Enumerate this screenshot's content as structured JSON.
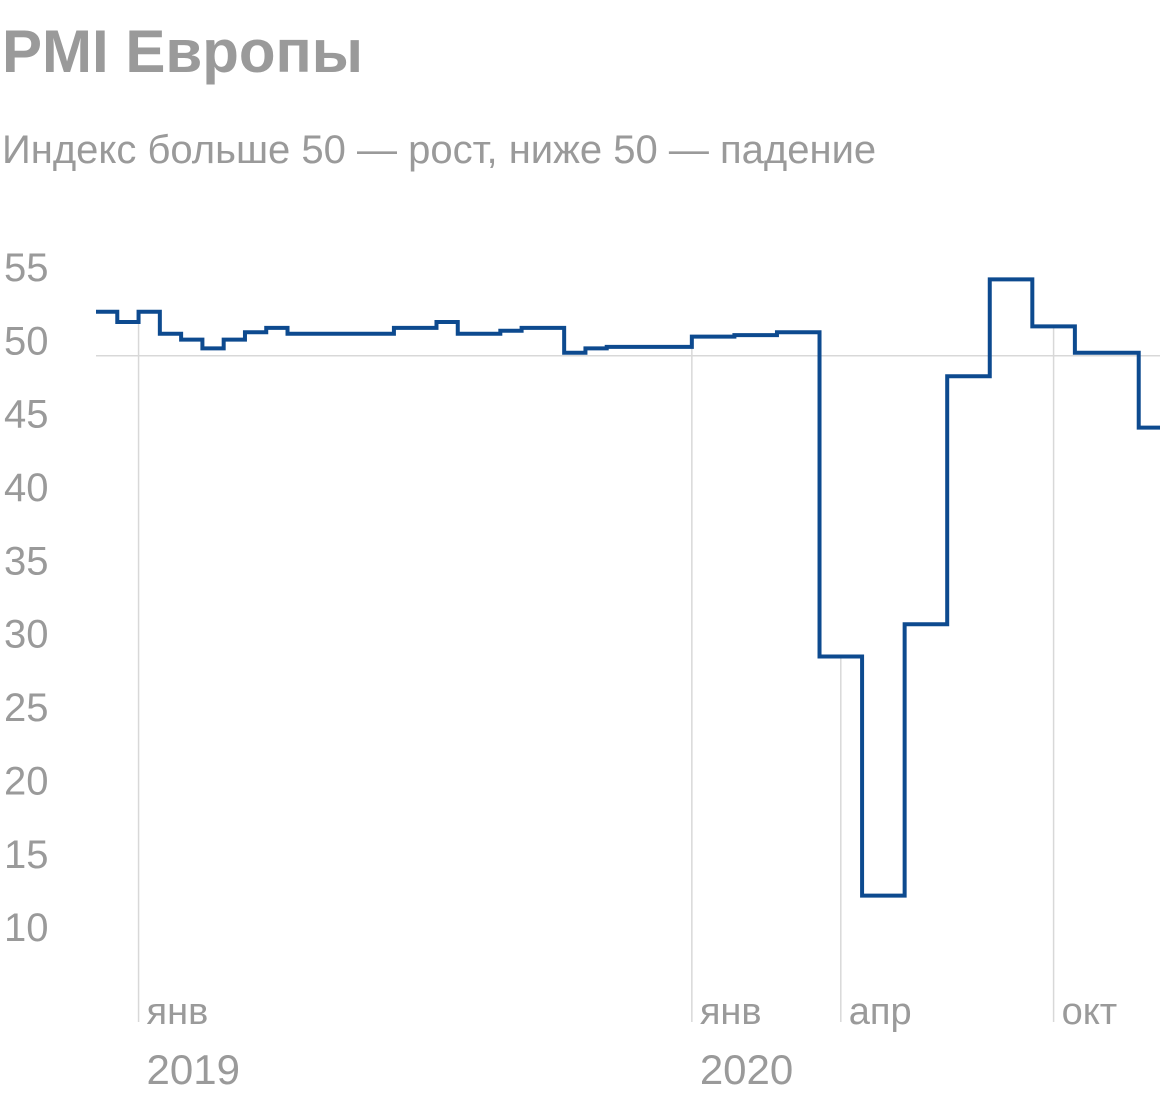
{
  "chart_data": {
    "type": "step",
    "title": "PMI Европы",
    "subtitle": "Индекс больше 50 — рост, ниже 50 — падение",
    "categories": [
      null,
      null,
      "янв",
      null,
      null,
      null,
      null,
      null,
      null,
      null,
      null,
      null,
      null,
      null,
      null,
      null,
      null,
      null,
      null,
      null,
      null,
      null,
      null,
      null,
      null,
      null,
      null,
      null,
      "янв",
      null,
      null,
      null,
      null,
      null,
      null,
      "апр",
      null,
      null,
      null,
      null,
      null,
      null,
      null,
      null,
      null,
      "окт",
      null,
      null,
      null,
      null
    ],
    "years": [
      null,
      null,
      "2019",
      null,
      null,
      null,
      null,
      null,
      null,
      null,
      null,
      null,
      null,
      null,
      null,
      null,
      null,
      null,
      null,
      null,
      null,
      null,
      null,
      null,
      null,
      null,
      null,
      null,
      "2020",
      null,
      null,
      null,
      null,
      null,
      null,
      null,
      null,
      null,
      null,
      null,
      null,
      null,
      null,
      null,
      null,
      null,
      null,
      null,
      null,
      null
    ],
    "values": [
      53.0,
      52.3,
      53.0,
      51.5,
      51.1,
      50.5,
      51.1,
      51.6,
      51.9,
      51.5,
      51.5,
      51.5,
      51.5,
      51.5,
      51.9,
      51.9,
      52.3,
      51.5,
      51.5,
      51.7,
      51.9,
      51.9,
      50.2,
      50.5,
      50.6,
      50.6,
      50.6,
      50.6,
      51.3,
      51.3,
      51.4,
      51.4,
      51.6,
      51.6,
      29.5,
      29.5,
      13.2,
      13.2,
      31.7,
      31.7,
      48.6,
      48.6,
      55.2,
      55.2,
      52.0,
      52.0,
      50.2,
      50.2,
      50.2,
      45.1
    ],
    "color": "#0d4a8f",
    "ylim": [
      5,
      57
    ],
    "yticks": [
      10,
      15,
      20,
      25,
      30,
      35,
      40,
      45,
      50,
      55
    ],
    "reference_line": 50
  }
}
